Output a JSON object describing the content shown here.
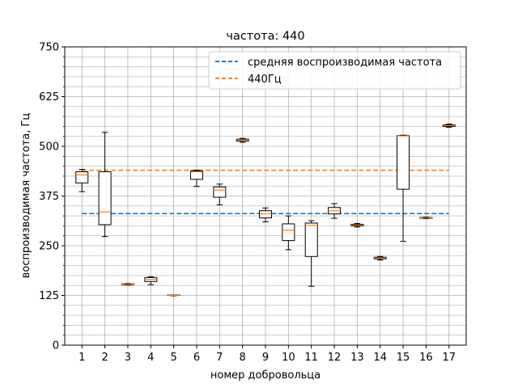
{
  "chart_data": {
    "type": "box",
    "title": "частота: 440",
    "xlabel": "номер добровольца",
    "ylabel": "воспроизводимая частота, Гц",
    "ylim": [
      0,
      750
    ],
    "yticks": [
      0,
      125,
      250,
      375,
      500,
      625,
      750
    ],
    "grid": true,
    "legend_position": "top-right",
    "categories": [
      "1",
      "2",
      "3",
      "4",
      "5",
      "6",
      "7",
      "8",
      "9",
      "10",
      "11",
      "12",
      "13",
      "14",
      "15",
      "16",
      "17"
    ],
    "boxes": [
      {
        "whislo": 386,
        "q1": 408,
        "med": 428,
        "q3": 436,
        "whishi": 442
      },
      {
        "whislo": 273,
        "q1": 303,
        "med": 335,
        "q3": 436,
        "whishi": 535
      },
      {
        "whislo": 151,
        "q1": 152,
        "med": 153,
        "q3": 154,
        "whishi": 155
      },
      {
        "whislo": 152,
        "q1": 160,
        "med": 165,
        "q3": 170,
        "whishi": 172
      },
      {
        "whislo": 124,
        "q1": 125,
        "med": 125,
        "q3": 126,
        "whishi": 126
      },
      {
        "whislo": 399,
        "q1": 417,
        "med": 436,
        "q3": 438,
        "whishi": 440
      },
      {
        "whislo": 353,
        "q1": 372,
        "med": 390,
        "q3": 398,
        "whishi": 405
      },
      {
        "whislo": 510,
        "q1": 513,
        "med": 516,
        "q3": 518,
        "whishi": 520
      },
      {
        "whislo": 310,
        "q1": 320,
        "med": 330,
        "q3": 338,
        "whishi": 345
      },
      {
        "whislo": 240,
        "q1": 263,
        "med": 289,
        "q3": 305,
        "whishi": 325
      },
      {
        "whislo": 148,
        "q1": 223,
        "med": 301,
        "q3": 307,
        "whishi": 313
      },
      {
        "whislo": 319,
        "q1": 330,
        "med": 338,
        "q3": 346,
        "whishi": 356
      },
      {
        "whislo": 297,
        "q1": 300,
        "med": 302,
        "q3": 304,
        "whishi": 306
      },
      {
        "whislo": 214,
        "q1": 217,
        "med": 219,
        "q3": 221,
        "whishi": 223
      },
      {
        "whislo": 261,
        "q1": 392,
        "med": 526,
        "q3": 527,
        "whishi": 528
      },
      {
        "whislo": 318,
        "q1": 319,
        "med": 320,
        "q3": 321,
        "whishi": 322
      },
      {
        "whislo": 548,
        "q1": 550,
        "med": 552,
        "q3": 554,
        "whishi": 556
      }
    ],
    "reference_lines": [
      {
        "name": "средняя воспроизводимая частота",
        "y": 331,
        "color": "#1f77b4",
        "style": "dashed"
      },
      {
        "name": "440Гц",
        "y": 440,
        "color": "#ff7f0e",
        "style": "dashed"
      }
    ],
    "colors": {
      "box": "#000000",
      "median": "#ff7f0e",
      "grid": "#b0b0b0"
    }
  }
}
